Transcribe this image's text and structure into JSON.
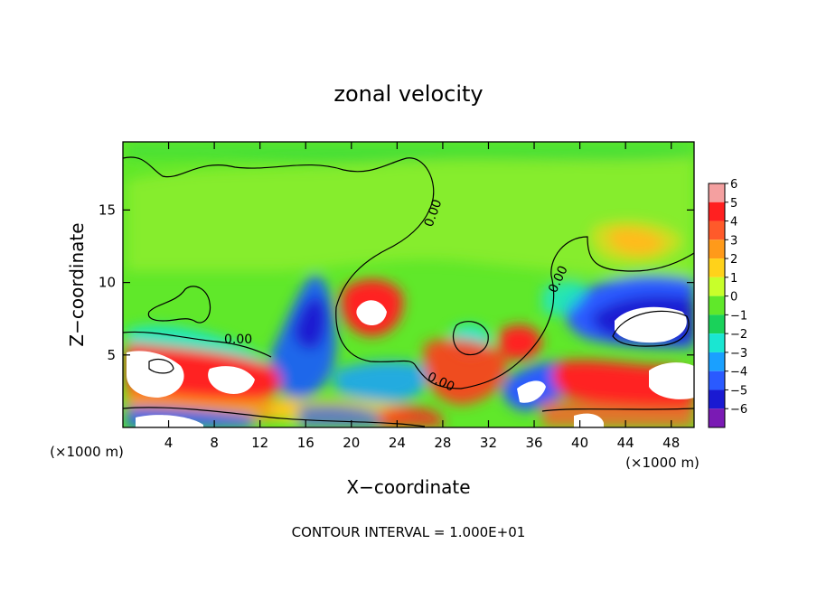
{
  "chart_data": {
    "type": "heatmap",
    "title": "zonal velocity",
    "xlabel": "X−coordinate",
    "ylabel": "Z−coordinate",
    "x_unit_left": "(×1000 m)",
    "x_unit_right": "(×1000 m)",
    "xlim": [
      0,
      50
    ],
    "ylim": [
      0,
      19.7
    ],
    "x_ticks": [
      4,
      8,
      12,
      16,
      20,
      24,
      28,
      32,
      36,
      40,
      44,
      48
    ],
    "y_ticks": [
      5,
      10,
      15
    ],
    "footer": "CONTOUR INTERVAL = 1.000E+01",
    "contour_label": "0.00",
    "colorbar": {
      "levels": [
        6,
        5,
        4,
        3,
        2,
        1,
        0,
        -1,
        -2,
        -3,
        -4,
        -5,
        -6
      ],
      "level_labels": [
        "6",
        "5",
        "4",
        "3",
        "2",
        "1",
        "0",
        "−1",
        "−2",
        "−3",
        "−4",
        "−5",
        "−6"
      ],
      "colors": [
        "#f4a0a0",
        "#ff2020",
        "#ff5a2a",
        "#ff9a1a",
        "#ffd21a",
        "#c8ff2a",
        "#60e82a",
        "#1ad25a",
        "#1ae6d2",
        "#1aa0ff",
        "#2a5aff",
        "#1a1ad2",
        "#7a1ab4"
      ]
    },
    "features": [
      {
        "x": 8,
        "y": 3.5,
        "value": 6
      },
      {
        "x": 22,
        "y": 7.8,
        "value": 6
      },
      {
        "x": 46,
        "y": 7,
        "value": -6
      },
      {
        "x": 17,
        "y": 8,
        "value": -5
      },
      {
        "x": 12,
        "y": 2.5,
        "value": 5
      },
      {
        "x": 34,
        "y": 5.8,
        "value": 5
      },
      {
        "x": 45.5,
        "y": 12.8,
        "value": 3
      },
      {
        "x": 31,
        "y": 6,
        "value": -3
      },
      {
        "x": 26,
        "y": 1.5,
        "value": 4
      },
      {
        "x": 36,
        "y": 2.5,
        "value": -4
      }
    ]
  }
}
